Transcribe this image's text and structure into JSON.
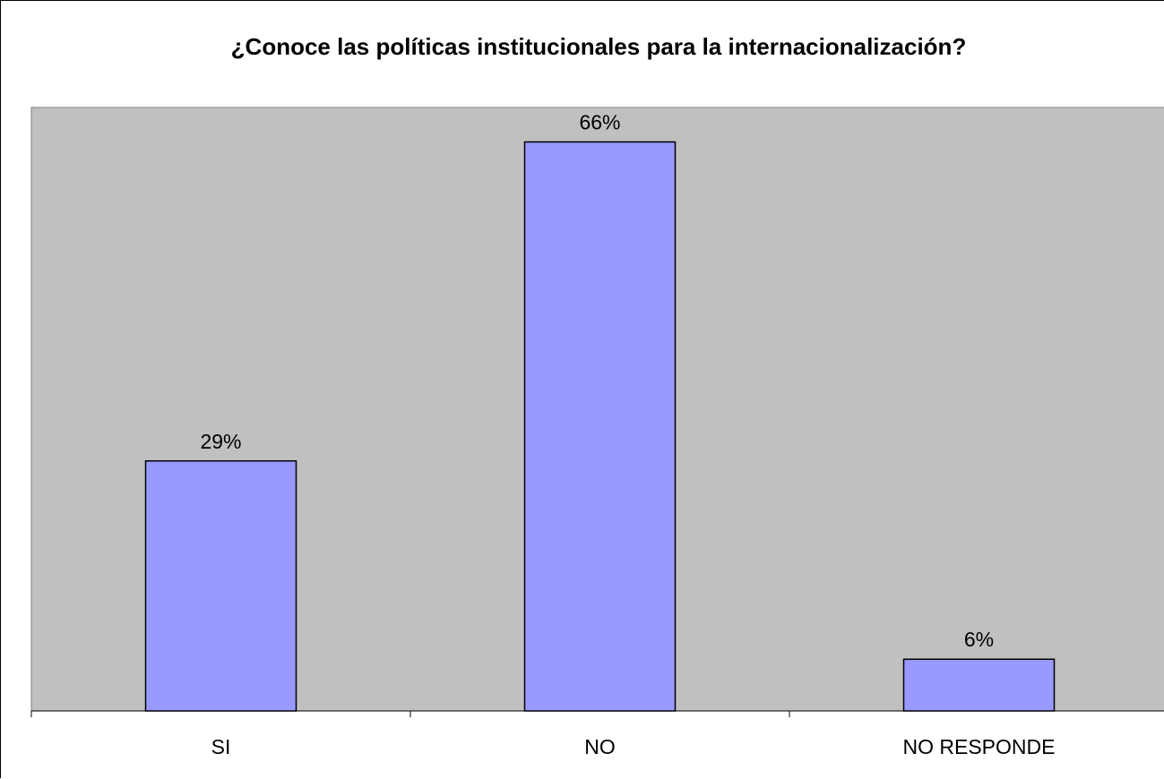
{
  "chart_data": {
    "type": "bar",
    "title": "¿Conoce las políticas institucionales para la internacionalización?",
    "categories": [
      "SI",
      "NO",
      "NO RESPONDE"
    ],
    "values": [
      29,
      66,
      6
    ],
    "data_labels": [
      "29%",
      "66%",
      "6%"
    ],
    "ylim": [
      0,
      70
    ],
    "xlabel": "",
    "ylabel": "",
    "grid": false,
    "legend": "none",
    "colors": {
      "bar_fill": "#9999ff",
      "bar_stroke": "#000000",
      "plot_background": "#c0c0c0",
      "chart_background": "#ffffff"
    }
  }
}
